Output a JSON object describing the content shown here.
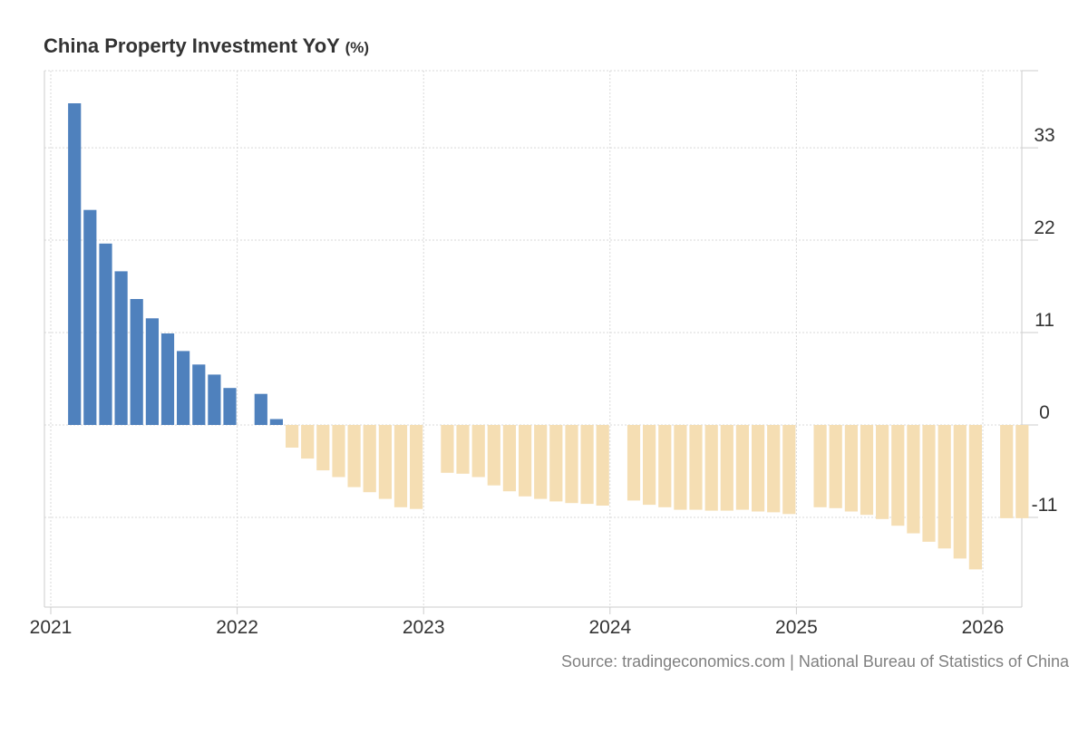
{
  "title": "China Property Investment YoY",
  "title_unit": "(%)",
  "source": "Source: tradingeconomics.com | National Bureau of Statistics of China",
  "chart_data": {
    "type": "bar",
    "title": "China Property Investment YoY (%)",
    "xlabel": "",
    "ylabel": "",
    "ylim": [
      -21.5,
      42.5
    ],
    "yticks": [
      "33",
      "22",
      "11",
      "0",
      "-11"
    ],
    "yticks_values": [
      33,
      22,
      11,
      0,
      -11
    ],
    "xticks": [
      "2021",
      "2022",
      "2023",
      "2024",
      "2025",
      "2026"
    ],
    "xticks_values": [
      2021,
      2022,
      2023,
      2024,
      2025,
      2026
    ],
    "grid": true,
    "colors": {
      "positive": "#4f81bd",
      "negative": "#f5deb3",
      "grid": "#d9d9d9",
      "axis": "#cccccc"
    },
    "series": [
      {
        "name": "China Property Investment YoY",
        "points": [
          {
            "label": "Feb 2021",
            "t": 2021.125,
            "value": 38.3
          },
          {
            "label": "Mar 2021",
            "t": 2021.208,
            "value": 25.6
          },
          {
            "label": "Apr 2021",
            "t": 2021.292,
            "value": 21.6
          },
          {
            "label": "May 2021",
            "t": 2021.375,
            "value": 18.3
          },
          {
            "label": "Jun 2021",
            "t": 2021.458,
            "value": 15.0
          },
          {
            "label": "Jul 2021",
            "t": 2021.542,
            "value": 12.7
          },
          {
            "label": "Aug 2021",
            "t": 2021.625,
            "value": 10.9
          },
          {
            "label": "Sep 2021",
            "t": 2021.708,
            "value": 8.8
          },
          {
            "label": "Oct 2021",
            "t": 2021.792,
            "value": 7.2
          },
          {
            "label": "Nov 2021",
            "t": 2021.875,
            "value": 6.0
          },
          {
            "label": "Dec 2021",
            "t": 2021.958,
            "value": 4.4
          },
          {
            "label": "Feb 2022",
            "t": 2022.125,
            "value": 3.7
          },
          {
            "label": "Mar 2022",
            "t": 2022.208,
            "value": 0.7
          },
          {
            "label": "Apr 2022",
            "t": 2022.292,
            "value": -2.7
          },
          {
            "label": "May 2022",
            "t": 2022.375,
            "value": -4.0
          },
          {
            "label": "Jun 2022",
            "t": 2022.458,
            "value": -5.4
          },
          {
            "label": "Jul 2022",
            "t": 2022.542,
            "value": -6.2
          },
          {
            "label": "Aug 2022",
            "t": 2022.625,
            "value": -7.4
          },
          {
            "label": "Sep 2022",
            "t": 2022.708,
            "value": -8.0
          },
          {
            "label": "Oct 2022",
            "t": 2022.792,
            "value": -8.8
          },
          {
            "label": "Nov 2022",
            "t": 2022.875,
            "value": -9.8
          },
          {
            "label": "Dec 2022",
            "t": 2022.958,
            "value": -10.0
          },
          {
            "label": "Feb 2023",
            "t": 2023.125,
            "value": -5.7
          },
          {
            "label": "Mar 2023",
            "t": 2023.208,
            "value": -5.8
          },
          {
            "label": "Apr 2023",
            "t": 2023.292,
            "value": -6.2
          },
          {
            "label": "May 2023",
            "t": 2023.375,
            "value": -7.2
          },
          {
            "label": "Jun 2023",
            "t": 2023.458,
            "value": -7.9
          },
          {
            "label": "Jul 2023",
            "t": 2023.542,
            "value": -8.5
          },
          {
            "label": "Aug 2023",
            "t": 2023.625,
            "value": -8.8
          },
          {
            "label": "Sep 2023",
            "t": 2023.708,
            "value": -9.1
          },
          {
            "label": "Oct 2023",
            "t": 2023.792,
            "value": -9.3
          },
          {
            "label": "Nov 2023",
            "t": 2023.875,
            "value": -9.4
          },
          {
            "label": "Dec 2023",
            "t": 2023.958,
            "value": -9.6
          },
          {
            "label": "Feb 2024",
            "t": 2024.125,
            "value": -9.0
          },
          {
            "label": "Mar 2024",
            "t": 2024.208,
            "value": -9.5
          },
          {
            "label": "Apr 2024",
            "t": 2024.292,
            "value": -9.8
          },
          {
            "label": "May 2024",
            "t": 2024.375,
            "value": -10.1
          },
          {
            "label": "Jun 2024",
            "t": 2024.458,
            "value": -10.1
          },
          {
            "label": "Jul 2024",
            "t": 2024.542,
            "value": -10.2
          },
          {
            "label": "Aug 2024",
            "t": 2024.625,
            "value": -10.2
          },
          {
            "label": "Sep 2024",
            "t": 2024.708,
            "value": -10.1
          },
          {
            "label": "Oct 2024",
            "t": 2024.792,
            "value": -10.3
          },
          {
            "label": "Nov 2024",
            "t": 2024.875,
            "value": -10.4
          },
          {
            "label": "Dec 2024",
            "t": 2024.958,
            "value": -10.6
          },
          {
            "label": "Feb 2025",
            "t": 2025.125,
            "value": -9.8
          },
          {
            "label": "Mar 2025",
            "t": 2025.208,
            "value": -9.9
          },
          {
            "label": "Apr 2025",
            "t": 2025.292,
            "value": -10.3
          },
          {
            "label": "May 2025",
            "t": 2025.375,
            "value": -10.7
          },
          {
            "label": "Jun 2025",
            "t": 2025.458,
            "value": -11.2
          },
          {
            "label": "Jul 2025",
            "t": 2025.542,
            "value": -12.0
          },
          {
            "label": "Aug 2025",
            "t": 2025.625,
            "value": -12.9
          },
          {
            "label": "Sep 2025",
            "t": 2025.708,
            "value": -13.9
          },
          {
            "label": "Oct 2025",
            "t": 2025.792,
            "value": -14.7
          },
          {
            "label": "Nov 2025",
            "t": 2025.875,
            "value": -15.9
          },
          {
            "label": "Dec 2025",
            "t": 2025.958,
            "value": -17.2
          },
          {
            "label": "Feb 2026",
            "t": 2026.125,
            "value": -11.1
          },
          {
            "label": "Mar 2026",
            "t": 2026.208,
            "value": -11.1
          }
        ]
      }
    ]
  }
}
